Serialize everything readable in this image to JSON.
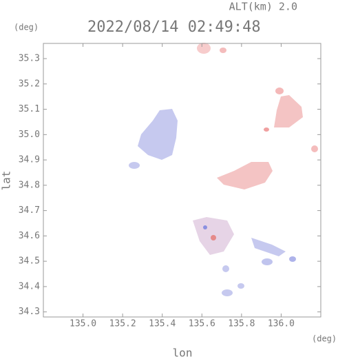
{
  "chart_data": {
    "type": "map",
    "title": "2022/08/14 02:49:48",
    "altitude_label": "ALT(km) 2.0",
    "y_unit": "(deg)",
    "x_unit": "(deg)",
    "ylabel": "lat",
    "xlabel": "lon",
    "xlim": [
      134.8,
      136.2
    ],
    "ylim": [
      34.28,
      35.36
    ],
    "xticks": [
      {
        "value": 135.0,
        "label": "135.0"
      },
      135.2,
      135.4,
      135.6,
      135.8,
      {
        "value": 136.0,
        "label": "136.0"
      }
    ],
    "yticks": [
      34.3,
      34.4,
      34.5,
      34.6,
      34.7,
      34.8,
      34.9,
      {
        "value": 35.0,
        "label": "35.0"
      },
      35.1,
      35.2,
      35.3
    ]
  }
}
